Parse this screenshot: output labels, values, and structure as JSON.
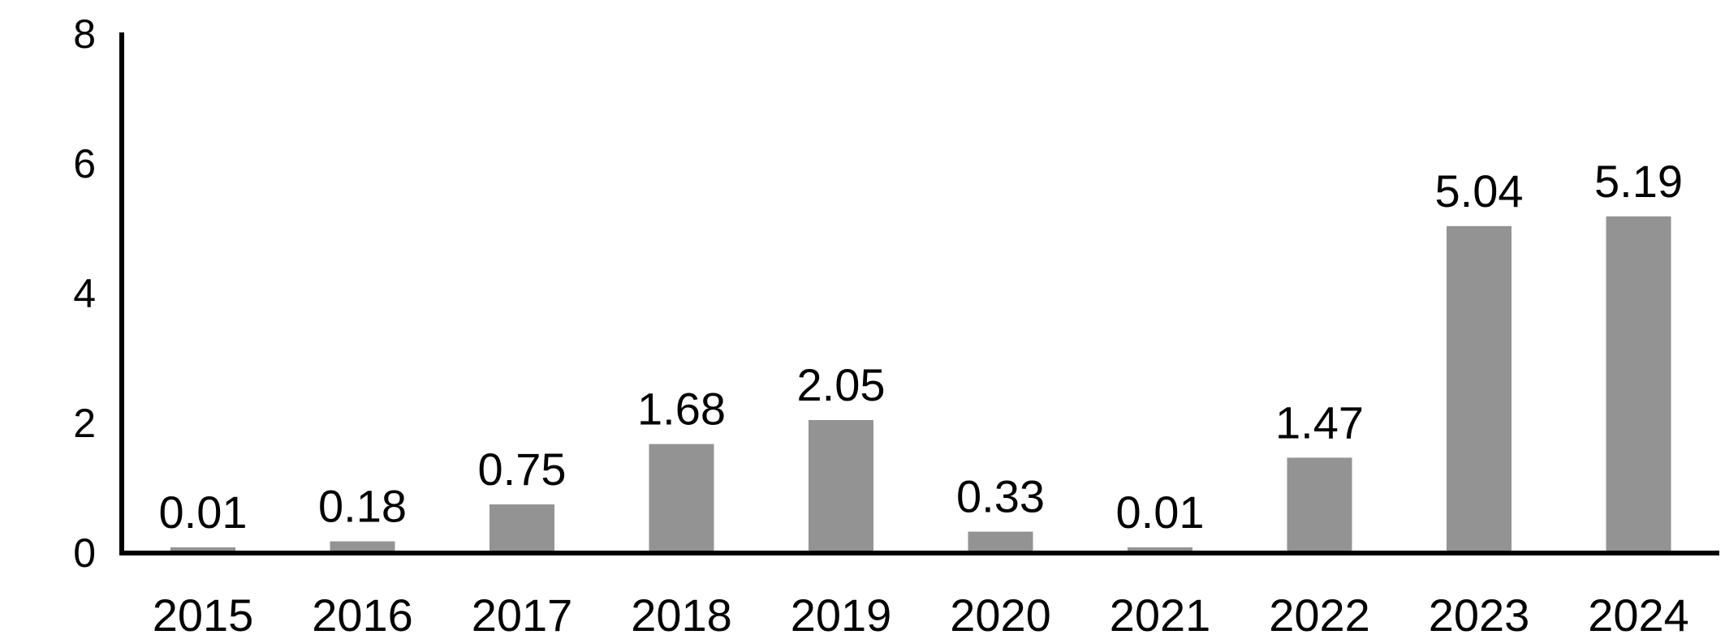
{
  "chart_data": {
    "type": "bar",
    "title": "",
    "xlabel": "",
    "ylabel": "",
    "categories": [
      "2015",
      "2016",
      "2017",
      "2018",
      "2019",
      "2020",
      "2021",
      "2022",
      "2023",
      "2024"
    ],
    "values": [
      0.01,
      0.18,
      0.75,
      1.68,
      2.05,
      0.33,
      0.01,
      1.47,
      5.04,
      5.19
    ],
    "data_labels": [
      "0.01",
      "0.18",
      "0.75",
      "1.68",
      "2.05",
      "0.33",
      "0.01",
      "1.47",
      "5.04",
      "5.19"
    ],
    "ylim": [
      0,
      8
    ],
    "yticks": [
      0,
      2,
      4,
      6,
      8
    ],
    "ytick_labels": [
      "0",
      "2",
      "4",
      "6",
      "8"
    ],
    "grid": false,
    "legend": "none",
    "colors": {
      "bar": "#939393",
      "axis": "#000000",
      "text": "#000000"
    }
  }
}
